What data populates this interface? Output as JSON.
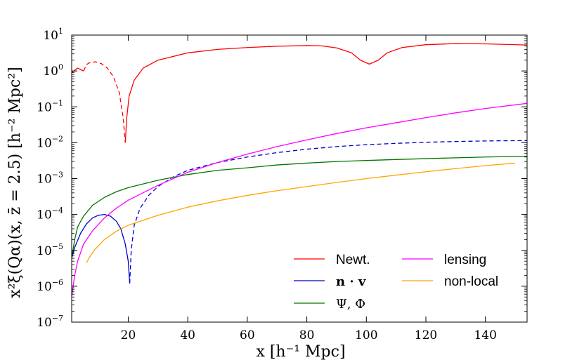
{
  "chart_data": {
    "type": "line",
    "title": "",
    "xlabel": "x [h⁻¹ Mpc]",
    "ylabel": "x²ξ(Qα)(x, z̄ = 2.5) [h⁻² Mpc²]",
    "xlim": [
      1,
      154
    ],
    "ylim_log10": [
      -7,
      1
    ],
    "xscale": "linear",
    "yscale": "log",
    "x_ticks": [
      20,
      40,
      60,
      80,
      100,
      120,
      140
    ],
    "x_tick_labels": [
      "20",
      "40",
      "60",
      "80",
      "100",
      "120",
      "140"
    ],
    "y_tick_exponents": [
      1,
      0,
      -1,
      -2,
      -3,
      -4,
      -5,
      -6,
      -7
    ],
    "y_tick_base": "10",
    "y_tick_exponent_labels": [
      "1",
      "0",
      "−1",
      "−2",
      "−3",
      "−4",
      "−5",
      "−6",
      "−7"
    ],
    "legend_position": "lower-right",
    "series": [
      {
        "name": "Newt.",
        "color": "#ff0000",
        "segments": [
          {
            "style": "solid",
            "points": [
              [
                1,
                0.9
              ],
              [
                3,
                1.2
              ],
              [
                5,
                1.0
              ]
            ]
          },
          {
            "style": "dashed",
            "points": [
              [
                5,
                1.0
              ],
              [
                6,
                1.5
              ],
              [
                7,
                1.7
              ],
              [
                9,
                1.8
              ],
              [
                11,
                1.6
              ],
              [
                13,
                1.2
              ],
              [
                15,
                0.7
              ],
              [
                17,
                0.25
              ],
              [
                18.3,
                0.05
              ],
              [
                19,
                0.01
              ]
            ]
          },
          {
            "style": "solid",
            "points": [
              [
                19,
                0.01
              ],
              [
                19.5,
                0.05
              ],
              [
                20.3,
                0.2
              ],
              [
                22,
                0.55
              ],
              [
                25,
                1.2
              ],
              [
                30,
                2.0
              ],
              [
                40,
                3.2
              ],
              [
                50,
                4.0
              ],
              [
                60,
                4.5
              ],
              [
                70,
                4.9
              ],
              [
                80,
                5.1
              ],
              [
                85,
                5.0
              ],
              [
                90,
                4.4
              ],
              [
                95,
                3.2
              ],
              [
                98,
                2.0
              ],
              [
                101,
                1.55
              ],
              [
                104,
                2.0
              ],
              [
                107,
                3.2
              ],
              [
                112,
                4.5
              ],
              [
                120,
                5.4
              ],
              [
                130,
                5.8
              ],
              [
                140,
                5.7
              ],
              [
                154,
                5.3
              ]
            ]
          }
        ]
      },
      {
        "name": "n · v",
        "color": "#0000cc",
        "segments": [
          {
            "style": "solid",
            "points": [
              [
                1,
                6e-06
              ],
              [
                2,
                1.2e-05
              ],
              [
                4,
                3e-05
              ],
              [
                6,
                5.5e-05
              ],
              [
                8,
                8e-05
              ],
              [
                10,
                9.5e-05
              ],
              [
                12,
                0.0001
              ],
              [
                14,
                9e-05
              ],
              [
                16,
                6.5e-05
              ],
              [
                17.5,
                4e-05
              ],
              [
                19,
                1.5e-05
              ],
              [
                20,
                5e-06
              ],
              [
                20.5,
                1.2e-06
              ]
            ]
          },
          {
            "style": "dashed",
            "points": [
              [
                20.5,
                1.2e-06
              ],
              [
                21,
                1e-05
              ],
              [
                22,
                5e-05
              ],
              [
                24,
                0.00015
              ],
              [
                27,
                0.00035
              ],
              [
                30,
                0.0006
              ],
              [
                35,
                0.0011
              ],
              [
                40,
                0.0017
              ],
              [
                50,
                0.0028
              ],
              [
                60,
                0.004
              ],
              [
                70,
                0.0053
              ],
              [
                80,
                0.0066
              ],
              [
                90,
                0.0078
              ],
              [
                100,
                0.0088
              ],
              [
                110,
                0.0096
              ],
              [
                120,
                0.0103
              ],
              [
                130,
                0.0108
              ],
              [
                140,
                0.0112
              ],
              [
                154,
                0.0115
              ]
            ]
          }
        ]
      },
      {
        "name": "Ψ, Φ",
        "color": "#007700",
        "segments": [
          {
            "style": "solid",
            "points": [
              [
                1,
                6e-06
              ],
              [
                2,
                2e-05
              ],
              [
                3,
                4.5e-05
              ],
              [
                5,
                9e-05
              ],
              [
                8,
                0.00018
              ],
              [
                12,
                0.0003
              ],
              [
                16,
                0.00043
              ],
              [
                20,
                0.00056
              ],
              [
                30,
                0.0009
              ],
              [
                40,
                0.0013
              ],
              [
                50,
                0.0017
              ],
              [
                60,
                0.002
              ],
              [
                70,
                0.0024
              ],
              [
                80,
                0.0027
              ],
              [
                90,
                0.003
              ],
              [
                100,
                0.0032
              ],
              [
                110,
                0.0034
              ],
              [
                120,
                0.0036
              ],
              [
                130,
                0.0038
              ],
              [
                140,
                0.004
              ],
              [
                154,
                0.0042
              ]
            ]
          }
        ]
      },
      {
        "name": "lensing",
        "color": "#ff00ff",
        "segments": [
          {
            "style": "solid",
            "points": [
              [
                1,
                5e-07
              ],
              [
                2,
                2e-06
              ],
              [
                3,
                5e-06
              ],
              [
                5,
                1.5e-05
              ],
              [
                8,
                3.5e-05
              ],
              [
                12,
                8e-05
              ],
              [
                16,
                0.00015
              ],
              [
                20,
                0.00025
              ],
              [
                30,
                0.00065
              ],
              [
                40,
                0.0015
              ],
              [
                50,
                0.0028
              ],
              [
                60,
                0.0048
              ],
              [
                70,
                0.0078
              ],
              [
                80,
                0.012
              ],
              [
                90,
                0.018
              ],
              [
                100,
                0.026
              ],
              [
                110,
                0.036
              ],
              [
                120,
                0.05
              ],
              [
                130,
                0.068
              ],
              [
                140,
                0.09
              ],
              [
                154,
                0.125
              ]
            ]
          }
        ]
      },
      {
        "name": "non-local",
        "color": "#ffa500",
        "segments": [
          {
            "style": "solid",
            "points": [
              [
                6,
                4.5e-06
              ],
              [
                7,
                6.5e-06
              ],
              [
                9,
                1.1e-05
              ],
              [
                12,
                2e-05
              ],
              [
                16,
                3.4e-05
              ],
              [
                20,
                5e-05
              ],
              [
                30,
                9.5e-05
              ],
              [
                40,
                0.00016
              ],
              [
                50,
                0.00024
              ],
              [
                60,
                0.00034
              ],
              [
                70,
                0.00046
              ],
              [
                80,
                0.0006
              ],
              [
                90,
                0.00078
              ],
              [
                100,
                0.001
              ],
              [
                110,
                0.00125
              ],
              [
                120,
                0.00155
              ],
              [
                130,
                0.0019
              ],
              [
                140,
                0.0023
              ],
              [
                150,
                0.0027
              ]
            ]
          }
        ]
      }
    ]
  }
}
